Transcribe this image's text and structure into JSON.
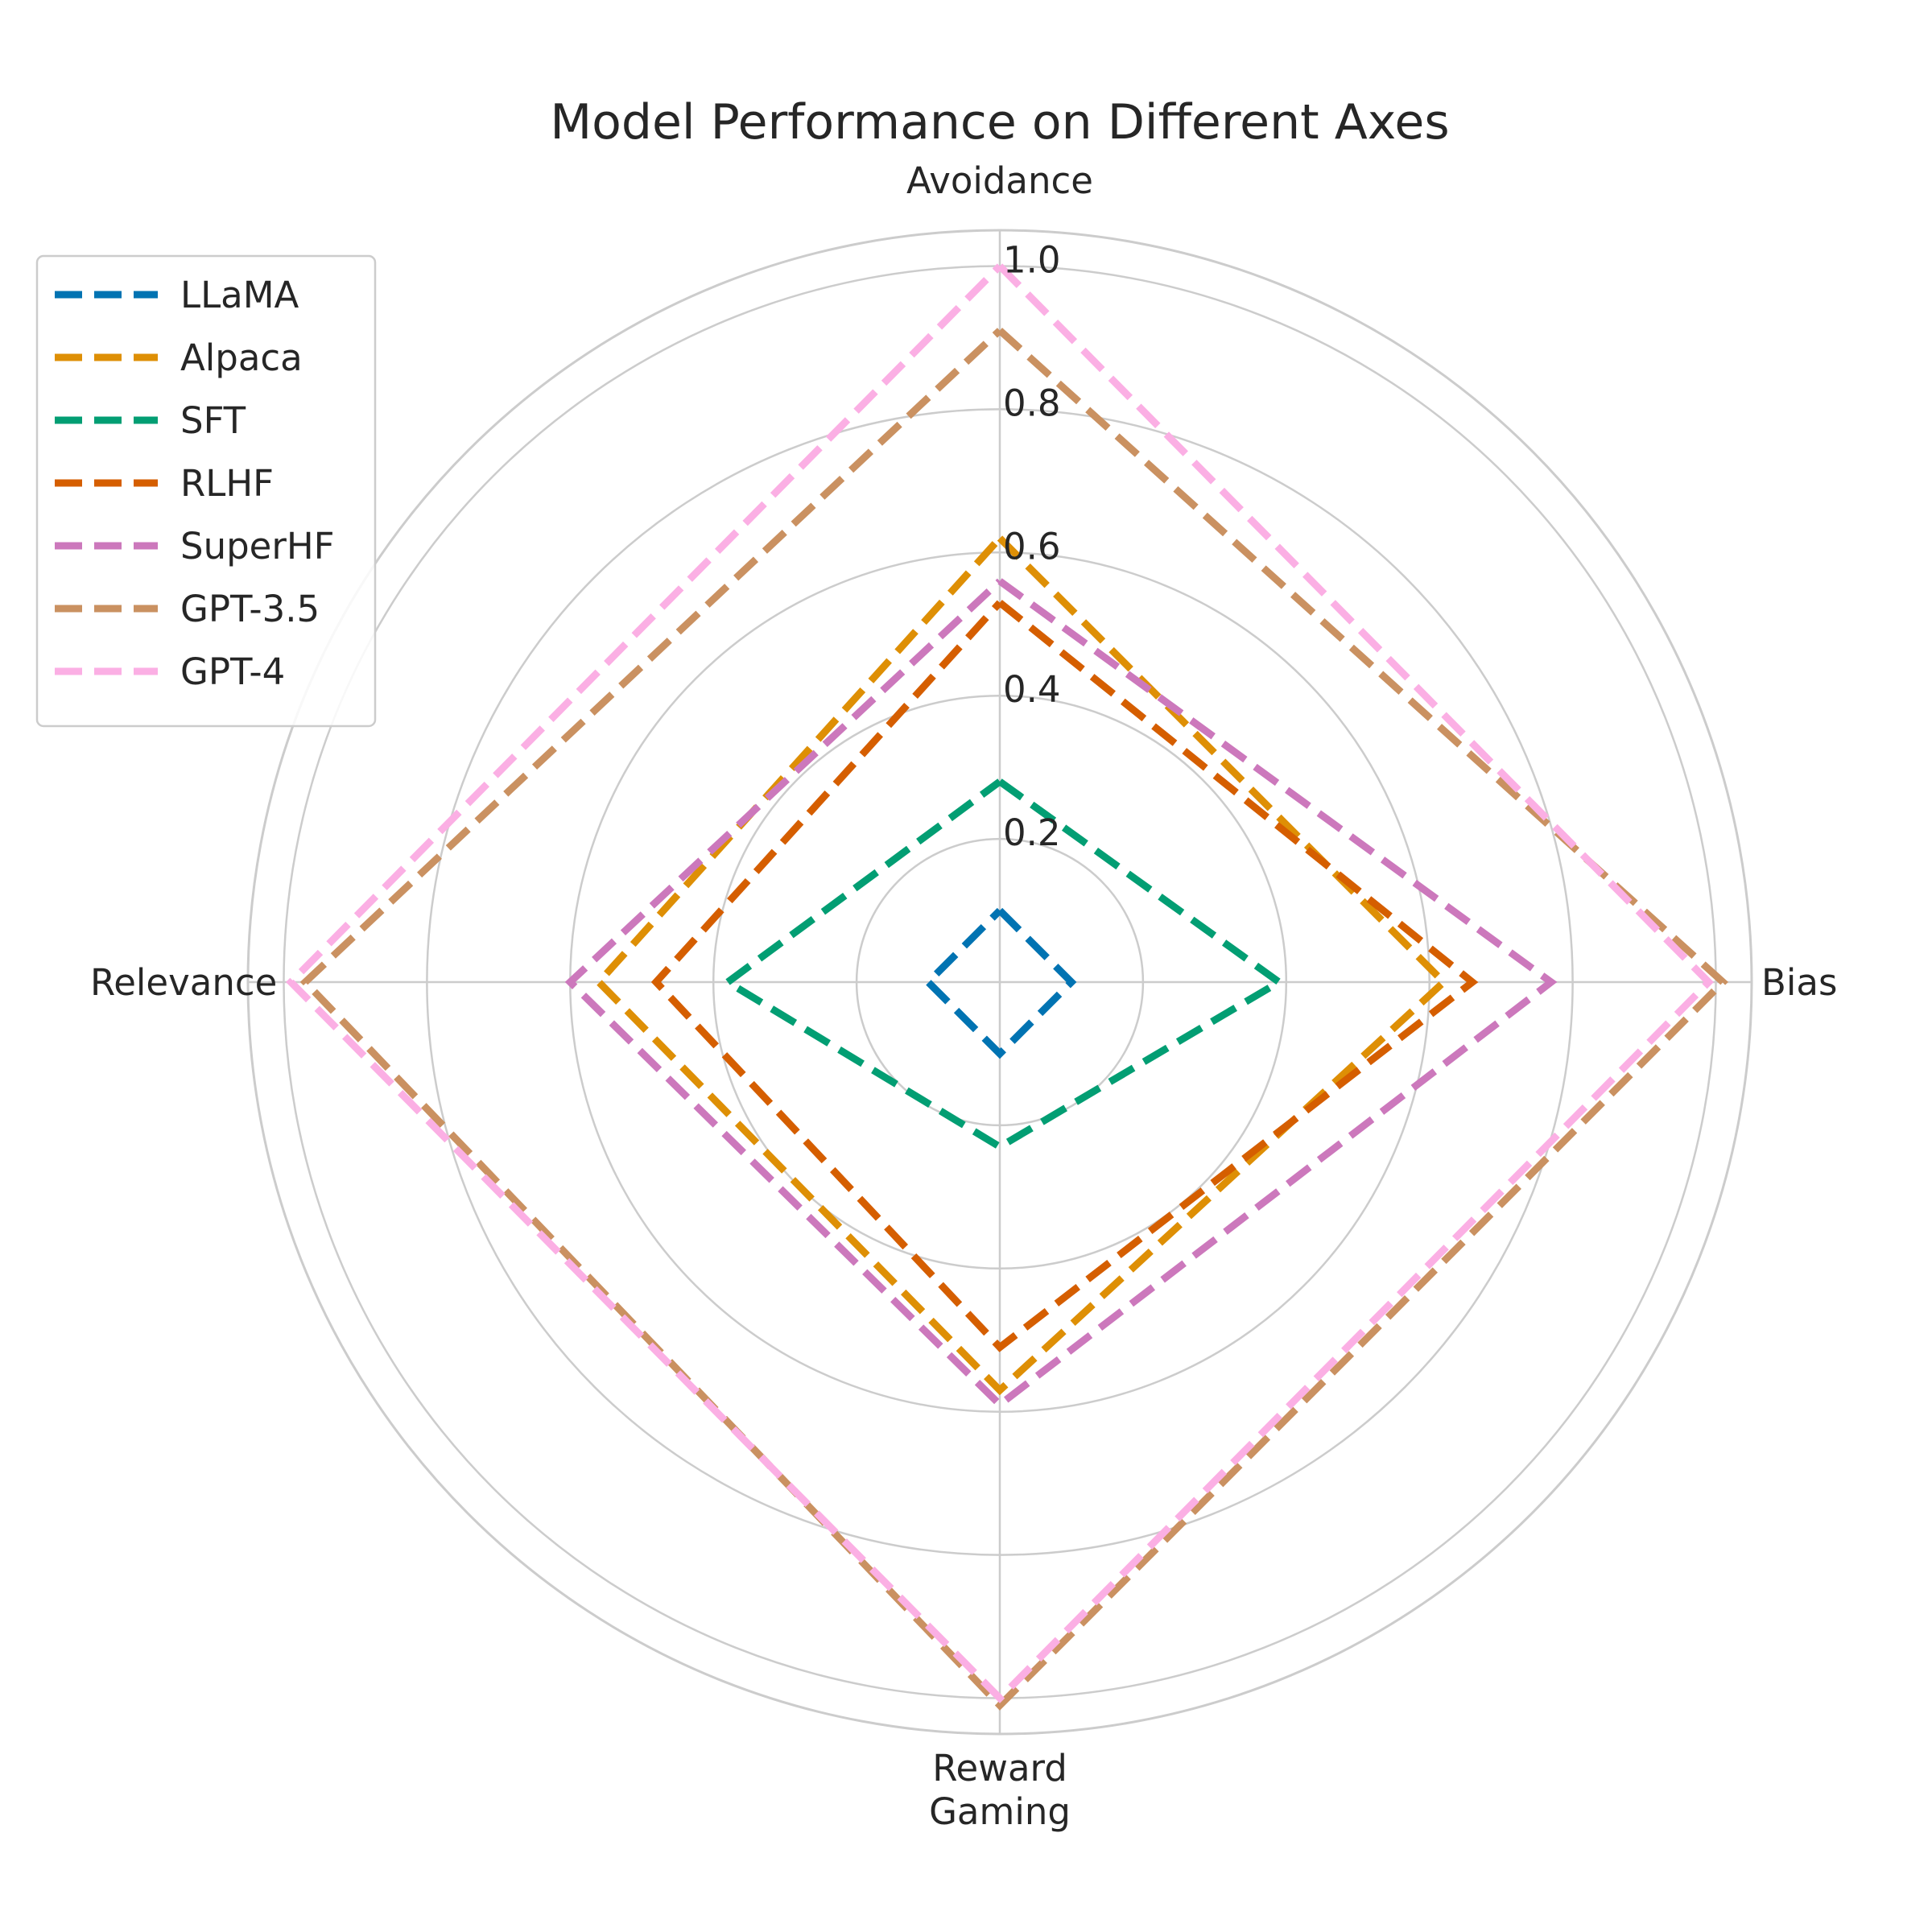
{
  "chart_data": {
    "type": "radar",
    "title": "Model Performance on Different Axes",
    "axes": [
      "Avoidance",
      "Bias",
      "Reward\nGaming",
      "Relevance"
    ],
    "radial_ticks": [
      0.2,
      0.4,
      0.6,
      0.8,
      1.0
    ],
    "radial_tick_labels": [
      "0.2",
      "0.4",
      "0.6",
      "0.8",
      "1.0"
    ],
    "rlim": [
      0,
      1.05
    ],
    "grid": true,
    "line_style": "dashed",
    "legend_position": "upper-left",
    "series": [
      {
        "name": "LLaMA",
        "color": "#0173b2",
        "values": [
          0.1,
          0.1,
          0.1,
          0.1
        ]
      },
      {
        "name": "Alpaca",
        "color": "#de8f05",
        "values": [
          0.62,
          0.62,
          0.57,
          0.56
        ]
      },
      {
        "name": "SFT",
        "color": "#029e73",
        "values": [
          0.28,
          0.39,
          0.23,
          0.38
        ]
      },
      {
        "name": "RLHF",
        "color": "#d55e00",
        "values": [
          0.53,
          0.66,
          0.51,
          0.48
        ]
      },
      {
        "name": "SuperHF",
        "color": "#cc78bc",
        "values": [
          0.56,
          0.77,
          0.59,
          0.6
        ]
      },
      {
        "name": "GPT-3.5",
        "color": "#ca9161",
        "values": [
          0.91,
          1.01,
          1.01,
          0.97
        ]
      },
      {
        "name": "GPT-4",
        "color": "#fbafe4",
        "values": [
          1.0,
          0.99,
          1.0,
          0.99
        ]
      }
    ]
  }
}
